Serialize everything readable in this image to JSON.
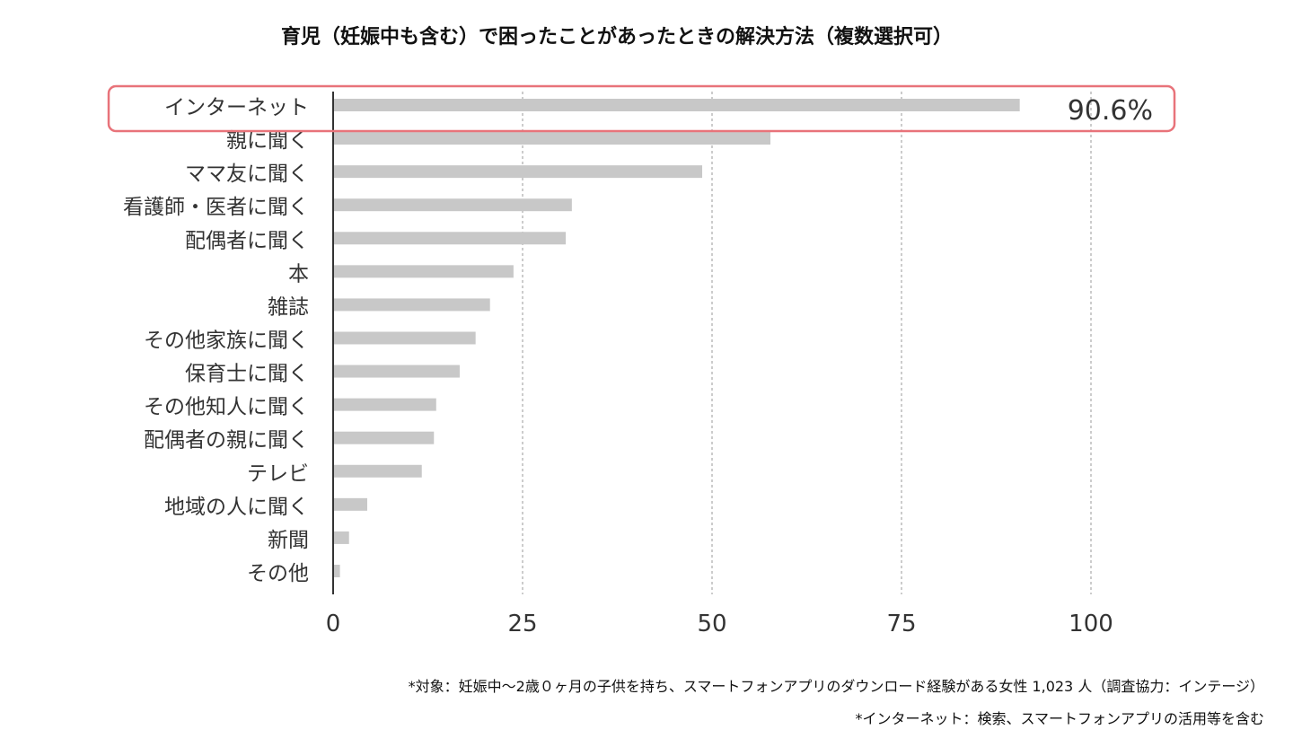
{
  "chart_data": {
    "type": "bar",
    "orientation": "horizontal",
    "title": "育児（妊娠中も含む）で困ったことがあったときの解決方法（複数選択可）",
    "categories": [
      "インターネット",
      "親に聞く",
      "ママ友に聞く",
      "看護師・医者に聞く",
      "配偶者に聞く",
      "本",
      "雑誌",
      "その他家族に聞く",
      "保育士に聞く",
      "その他知人に聞く",
      "配偶者の親に聞く",
      "テレビ",
      "地域の人に聞く",
      "新聞",
      "その他"
    ],
    "values": [
      90.6,
      57.7,
      48.7,
      31.5,
      30.7,
      23.8,
      20.7,
      18.8,
      16.7,
      13.6,
      13.3,
      11.7,
      4.5,
      2.1,
      0.9
    ],
    "xlim": [
      0,
      100
    ],
    "xticks": [
      "0",
      "25",
      "50",
      "75",
      "100"
    ],
    "xtick_values": [
      0,
      25,
      50,
      75,
      100
    ],
    "grid": "vertical dashed",
    "highlight": {
      "category_index": 0,
      "label": "90.6%",
      "color": "#e8737a"
    },
    "bar_color": "#c8c8c8",
    "notes": [
      "*対象：妊娠中〜2歳０ヶ月の子供を持ち、スマートフォンアプリのダウンロード経験がある女性 1,023 人（調査協力：インテージ）",
      "*インターネット：検索、スマートフォンアプリの活用等を含む"
    ]
  }
}
